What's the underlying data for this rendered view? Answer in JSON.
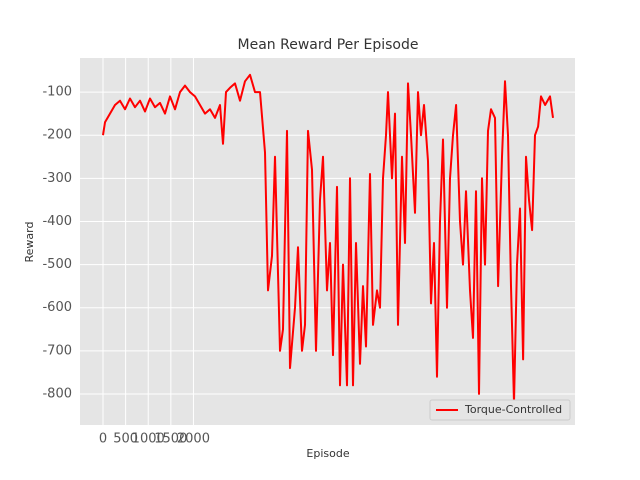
{
  "chart_data": {
    "type": "line",
    "title": "Mean Reward Per Episode",
    "xlabel": "Episode",
    "ylabel": "Reward",
    "xlim": [
      -509,
      10440
    ],
    "ylim": [
      -872,
      -21
    ],
    "xticks": [
      0,
      500,
      1000,
      1500,
      2000
    ],
    "yticks": [
      -800,
      -700,
      -600,
      -500,
      -400,
      -300,
      -200,
      -100
    ],
    "grid": true,
    "legend": "lower right",
    "x": [
      0,
      44,
      155,
      265,
      376,
      487,
      597,
      708,
      818,
      929,
      1040,
      1150,
      1261,
      1371,
      1482,
      1593,
      1703,
      1814,
      1924,
      2035,
      2146,
      2256,
      2367,
      2477,
      2588,
      2654,
      2721,
      2809,
      2920,
      3031,
      3141,
      3252,
      3362,
      3473,
      3583,
      3650,
      3738,
      3804,
      3915,
      3982,
      4070,
      4136,
      4247,
      4313,
      4402,
      4468,
      4535,
      4623,
      4712,
      4800,
      4866,
      4955,
      5021,
      5088,
      5176,
      5242,
      5309,
      5397,
      5464,
      5530,
      5596,
      5685,
      5751,
      5818,
      5906,
      5972,
      6061,
      6127,
      6194,
      6260,
      6304,
      6393,
      6459,
      6525,
      6614,
      6680,
      6747,
      6813,
      6902,
      6968,
      7034,
      7101,
      7189,
      7255,
      7322,
      7388,
      7454,
      7521,
      7609,
      7676,
      7742,
      7809,
      7897,
      7963,
      8030,
      8118,
      8184,
      8251,
      8317,
      8384,
      8450,
      8516,
      8583,
      8671,
      8738,
      8826,
      8892,
      8959,
      9025,
      9091,
      9158,
      9224,
      9291,
      9357,
      9423,
      9490,
      9556,
      9623,
      9689,
      9778,
      9888,
      9954
    ],
    "series": [
      {
        "name": "Torque-Controlled",
        "color": "#ff0000",
        "values": [
          -200,
          -170,
          -150,
          -130,
          -120,
          -140,
          -115,
          -135,
          -120,
          -145,
          -115,
          -135,
          -125,
          -150,
          -110,
          -140,
          -100,
          -85,
          -100,
          -110,
          -130,
          -150,
          -140,
          -160,
          -130,
          -220,
          -100,
          -90,
          -80,
          -120,
          -75,
          -60,
          -100,
          -100,
          -240,
          -560,
          -480,
          -250,
          -700,
          -650,
          -190,
          -740,
          -600,
          -460,
          -700,
          -640,
          -190,
          -280,
          -700,
          -350,
          -250,
          -560,
          -450,
          -710,
          -320,
          -780,
          -500,
          -780,
          -300,
          -780,
          -450,
          -730,
          -550,
          -690,
          -290,
          -640,
          -560,
          -600,
          -300,
          -200,
          -100,
          -300,
          -150,
          -640,
          -250,
          -450,
          -80,
          -200,
          -380,
          -100,
          -200,
          -130,
          -260,
          -590,
          -450,
          -760,
          -400,
          -210,
          -600,
          -300,
          -200,
          -130,
          -400,
          -500,
          -330,
          -560,
          -670,
          -330,
          -800,
          -300,
          -500,
          -190,
          -140,
          -160,
          -550,
          -250,
          -75,
          -200,
          -550,
          -820,
          -500,
          -370,
          -720,
          -250,
          -350,
          -420,
          -200,
          -180,
          -110,
          -130,
          -110,
          -160
        ]
      }
    ]
  }
}
